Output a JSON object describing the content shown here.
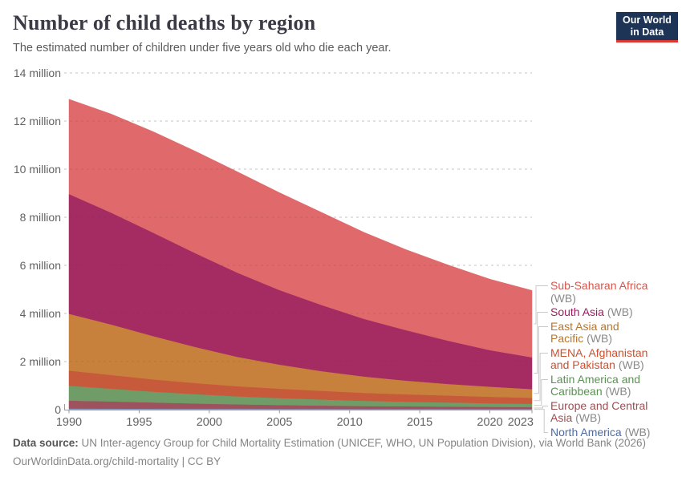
{
  "header": {
    "title": "Number of child deaths by region",
    "subtitle": "The estimated number of children under five years old who die each year.",
    "logo": {
      "line1": "Our World",
      "line2": "in Data",
      "bg": "#1d3456",
      "accent": "#dc3832"
    }
  },
  "footer": {
    "source_label": "Data source:",
    "source_text": " UN Inter-agency Group for Child Mortality Estimation (UNICEF, WHO, UN Population Division), via World Bank (2026)",
    "citation": "OurWorldinData.org/child-mortality | CC BY"
  },
  "chart_data": {
    "type": "area",
    "stacked": true,
    "title": "Number of child deaths by region",
    "subtitle": "The estimated number of children under five years old who die each year.",
    "xlabel": "",
    "ylabel": "",
    "unit": "million deaths per year",
    "xlim": [
      1990,
      2023
    ],
    "ylim": [
      0,
      14
    ],
    "grid": "horizontal-dashed",
    "legend_position": "right",
    "x": [
      1990,
      1993,
      1996,
      1999,
      2002,
      2005,
      2008,
      2011,
      2014,
      2017,
      2020,
      2023
    ],
    "x_ticks": [
      "1990",
      "1995",
      "2000",
      "2005",
      "2010",
      "2015",
      "2020",
      "2023"
    ],
    "y_ticks": [
      {
        "v": 0,
        "label": "0"
      },
      {
        "v": 2,
        "label": "2 million"
      },
      {
        "v": 4,
        "label": "4 million"
      },
      {
        "v": 6,
        "label": "6 million"
      },
      {
        "v": 8,
        "label": "8 million"
      },
      {
        "v": 10,
        "label": "10 million"
      },
      {
        "v": 12,
        "label": "12 million"
      },
      {
        "v": 14,
        "label": "14 million"
      }
    ],
    "series_top_to_bottom": [
      {
        "name": "Sub-Saharan Africa",
        "lines": [
          "Sub-Saharan Africa (WB)"
        ],
        "fill": "#e0696b",
        "text_color": "#d6564c",
        "values": [
          3.94,
          4.1,
          4.2,
          4.24,
          4.2,
          4.05,
          3.85,
          3.6,
          3.35,
          3.15,
          2.95,
          2.78
        ]
      },
      {
        "name": "South Asia",
        "lines": [
          "South Asia (WB)"
        ],
        "fill": "#a52c63",
        "text_color": "#9a1e60",
        "values": [
          4.98,
          4.65,
          4.3,
          3.9,
          3.5,
          3.1,
          2.75,
          2.4,
          2.1,
          1.8,
          1.52,
          1.32
        ]
      },
      {
        "name": "East Asia and Pacific",
        "lines": [
          "East Asia and",
          "Pacific (WB)"
        ],
        "fill": "#c7813c",
        "text_color": "#b8762a",
        "values": [
          2.36,
          2.1,
          1.8,
          1.5,
          1.22,
          1.0,
          0.82,
          0.68,
          0.57,
          0.48,
          0.42,
          0.36
        ]
      },
      {
        "name": "MENA, Afghanistan and Pakistan",
        "lines": [
          "MENA, Afghanistan",
          "and Pakistan (WB)"
        ],
        "fill": "#c75a3b",
        "text_color": "#ce4f2d",
        "values": [
          0.63,
          0.57,
          0.51,
          0.46,
          0.42,
          0.39,
          0.36,
          0.33,
          0.31,
          0.29,
          0.27,
          0.25
        ]
      },
      {
        "name": "Latin America and Caribbean",
        "lines": [
          "Latin America and",
          "Caribbean (WB)"
        ],
        "fill": "#709c67",
        "text_color": "#5b9154",
        "values": [
          0.62,
          0.53,
          0.45,
          0.39,
          0.33,
          0.29,
          0.25,
          0.22,
          0.19,
          0.17,
          0.15,
          0.14
        ]
      },
      {
        "name": "Europe and Central Asia",
        "lines": [
          "Europe and Central",
          "Asia (WB)"
        ],
        "fill": "#9e525e",
        "text_color": "#9c4f52",
        "values": [
          0.33,
          0.3,
          0.26,
          0.22,
          0.19,
          0.16,
          0.14,
          0.12,
          0.11,
          0.1,
          0.09,
          0.08
        ]
      },
      {
        "name": "North America",
        "lines": [
          "North America (WB)"
        ],
        "fill": "#8b9dc7",
        "text_color": "#4f6ba5",
        "values": [
          0.046,
          0.042,
          0.039,
          0.037,
          0.035,
          0.034,
          0.033,
          0.031,
          0.03,
          0.029,
          0.028,
          0.027
        ]
      }
    ]
  }
}
